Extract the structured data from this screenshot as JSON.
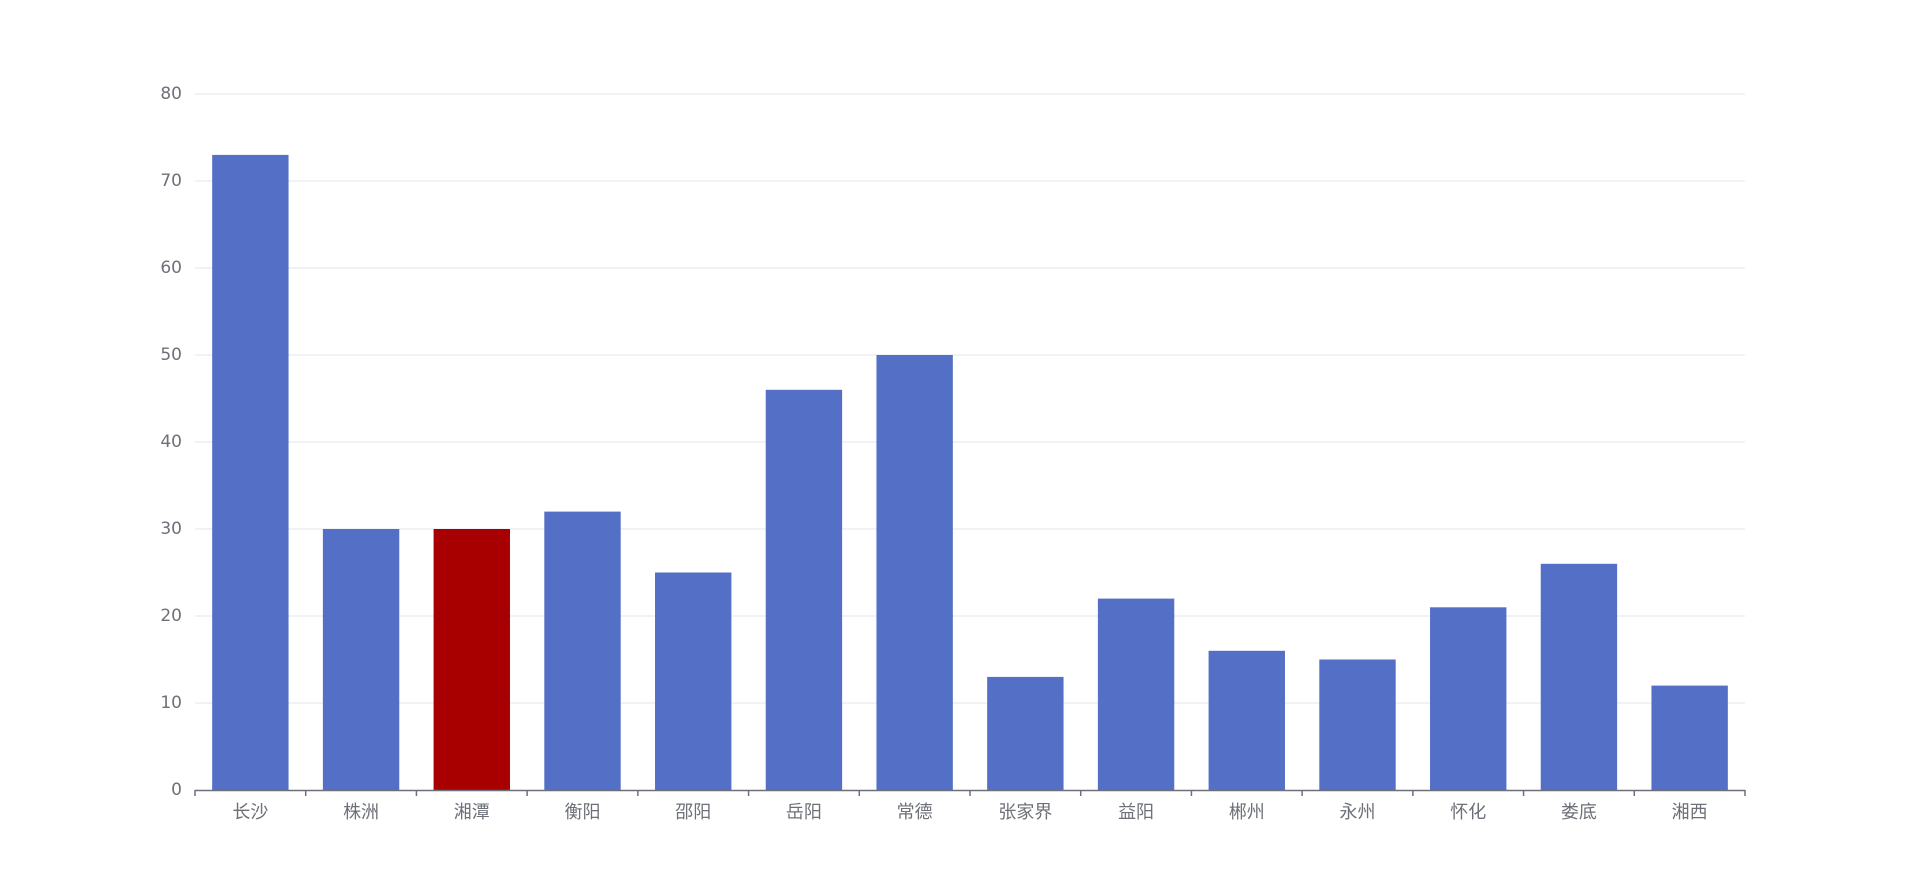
{
  "chart_data": {
    "type": "bar",
    "categories": [
      "长沙",
      "株洲",
      "湘潭",
      "衡阳",
      "邵阳",
      "岳阳",
      "常德",
      "张家界",
      "益阳",
      "郴州",
      "永州",
      "怀化",
      "娄底",
      "湘西"
    ],
    "values": [
      73,
      30,
      30,
      32,
      25,
      46,
      50,
      13,
      22,
      16,
      15,
      21,
      26,
      12
    ],
    "highlight_index": 2,
    "ylim": [
      0,
      80
    ],
    "yticks": [
      0,
      10,
      20,
      30,
      40,
      50,
      60,
      70,
      80
    ],
    "grid": true,
    "legend": "none",
    "colors": {
      "bar": "#5470c6",
      "highlight": "#a80000",
      "grid": "#e0e6f1",
      "axis": "#6e7079",
      "label": "#6e7079"
    }
  }
}
